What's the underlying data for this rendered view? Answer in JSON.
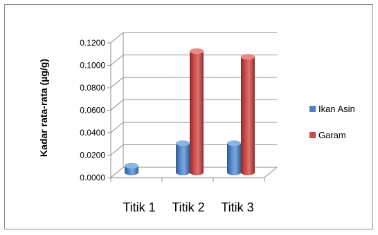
{
  "chart_data": {
    "type": "bar",
    "style": "3d-clustered-column",
    "title": "",
    "xlabel": "",
    "ylabel": "Kadar rata-rata (µg/g)",
    "categories": [
      "Titik 1",
      "Titik 2",
      "Titik 3"
    ],
    "series": [
      {
        "name": "Ikan Asin",
        "values": [
          0.006,
          0.026,
          0.026
        ],
        "color": "#4f81bd"
      },
      {
        "name": "Garam",
        "values": [
          null,
          0.108,
          0.103
        ],
        "color": "#c0504d"
      }
    ],
    "ylim": [
      0,
      0.12
    ],
    "yticks": [
      "0.0000",
      "0.0200",
      "0.0400",
      "0.0600",
      "0.0800",
      "0.1000",
      "0.1200"
    ],
    "grid": true,
    "legend_position": "right"
  }
}
